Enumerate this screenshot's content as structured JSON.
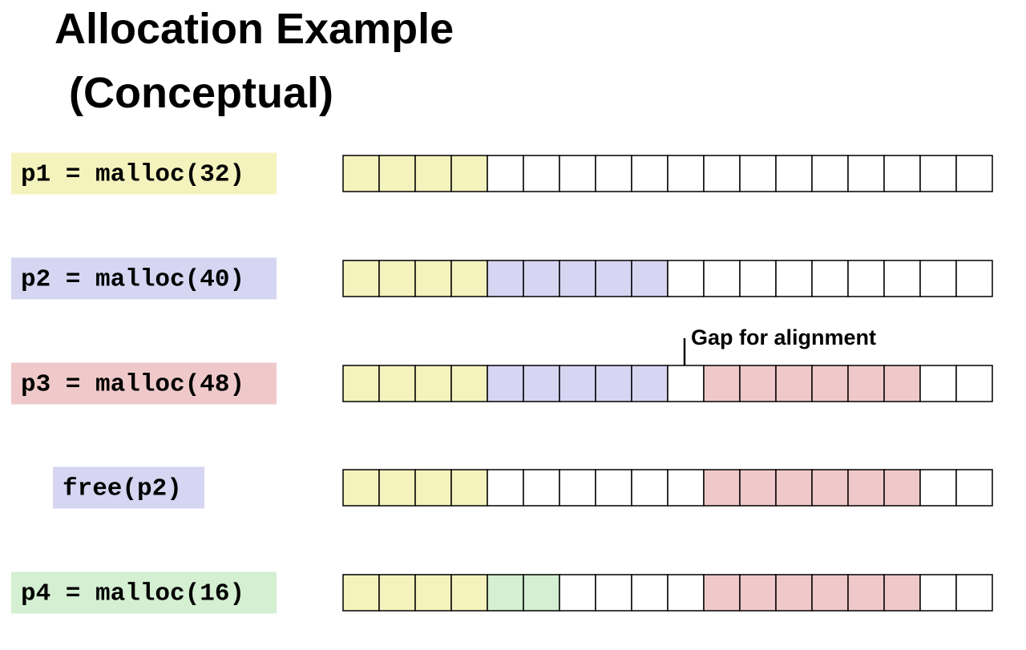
{
  "header": {
    "title_line1": "Allocation Example",
    "title_line2": "(Conceptual)"
  },
  "rows": [
    {
      "label": "p1 = malloc(32)"
    },
    {
      "label": "p2 = malloc(40)"
    },
    {
      "label": "p3 = malloc(48)"
    },
    {
      "label": "free(p2)"
    },
    {
      "label": "p4 = malloc(16)"
    }
  ],
  "annotation": "Gap for alignment"
}
